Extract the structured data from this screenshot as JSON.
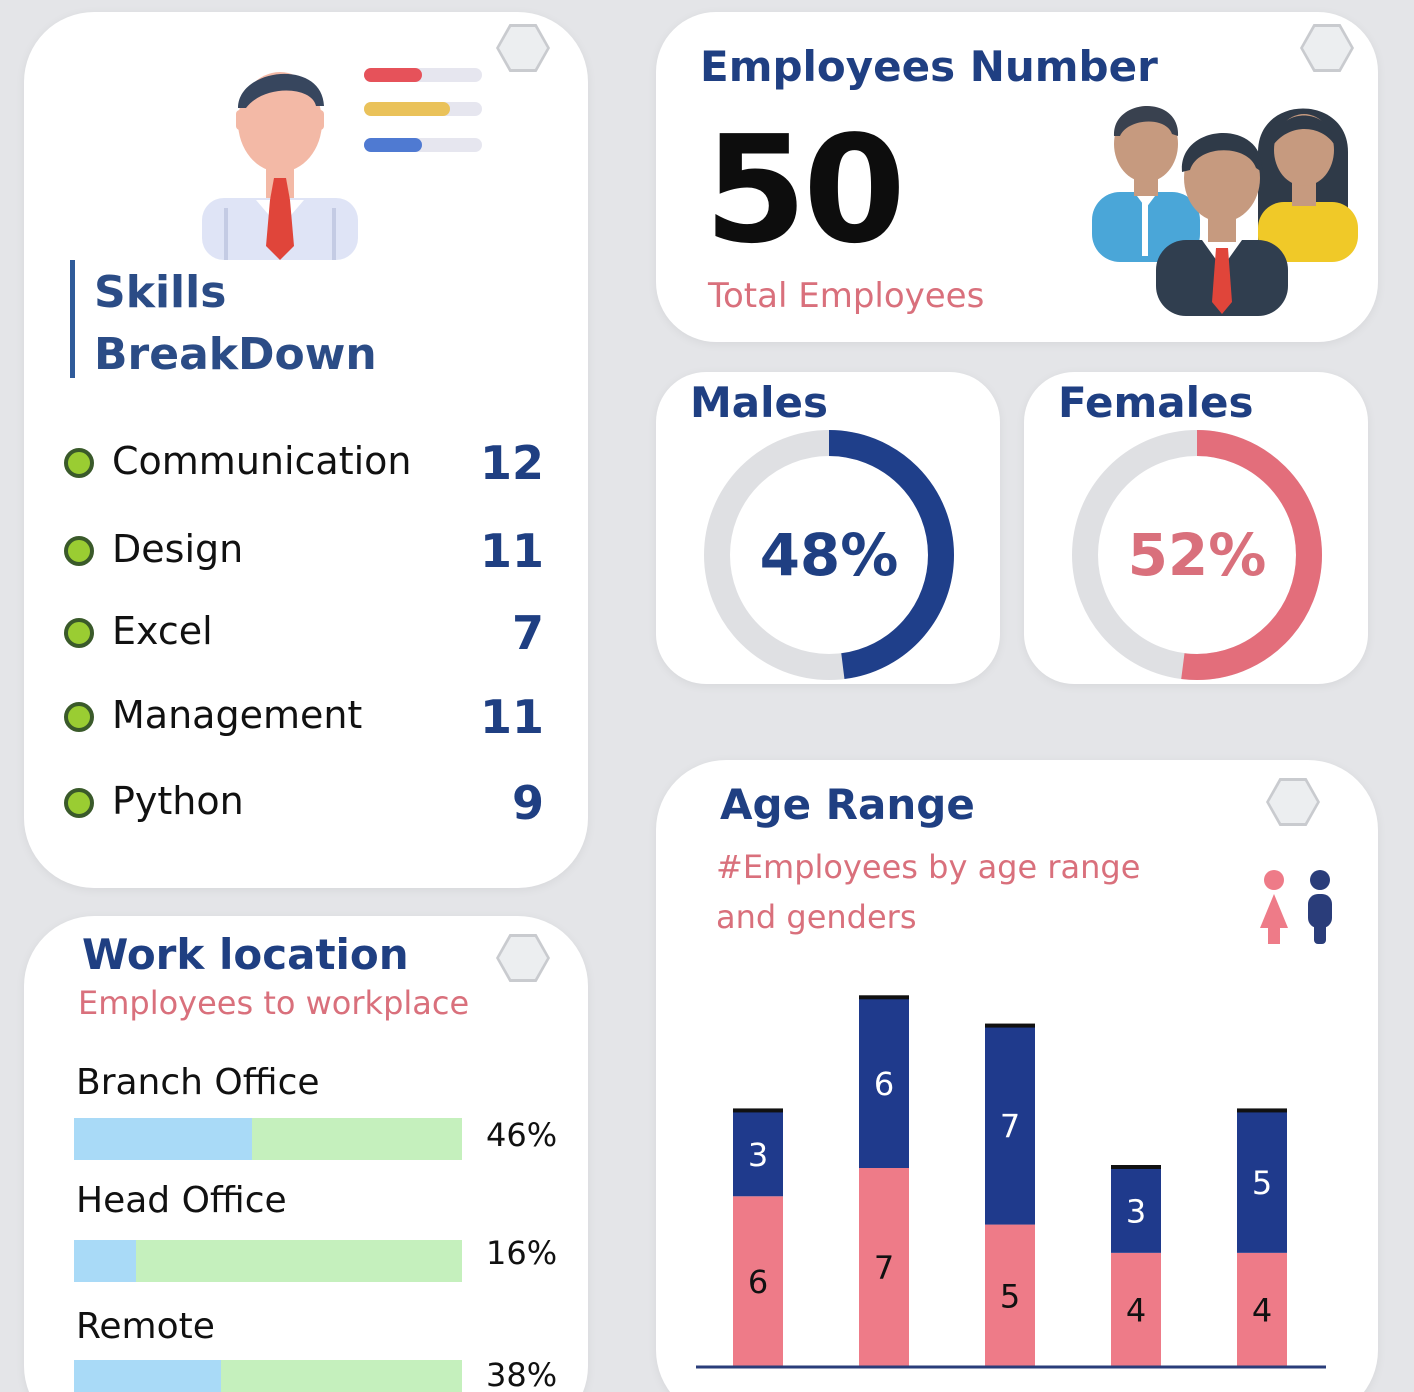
{
  "skills": {
    "title_line1": "Skills",
    "title_line2": "BreakDown",
    "items": [
      {
        "label": "Communication",
        "value": "12"
      },
      {
        "label": "Design",
        "value": "11"
      },
      {
        "label": "Excel",
        "value": "7"
      },
      {
        "label": "Management",
        "value": "11"
      },
      {
        "label": "Python",
        "value": "9"
      }
    ]
  },
  "employees": {
    "title": "Employees Number",
    "total": "50",
    "subtitle": "Total Employees"
  },
  "gender": {
    "males": {
      "title": "Males",
      "percent_label": "48%",
      "fraction": 0.48,
      "color": "#1f3f8a"
    },
    "females": {
      "title": "Females",
      "percent_label": "52%",
      "fraction": 0.52,
      "color": "#e36e7b"
    }
  },
  "work_location": {
    "title": "Work location",
    "subtitle": "Employees to workplace",
    "items": [
      {
        "label": "Branch Office",
        "percent_label": "46%",
        "fraction": 0.46
      },
      {
        "label": "Head Office",
        "percent_label": "16%",
        "fraction": 0.16
      },
      {
        "label": "Remote",
        "percent_label": "38%",
        "fraction": 0.38
      }
    ]
  },
  "age_range": {
    "title": "Age Range",
    "subtitle": "#Employees by age range and genders",
    "icons": [
      "female-icon",
      "male-icon"
    ]
  },
  "chart_data": {
    "type": "bar",
    "stacked": true,
    "categories": [
      "",
      "",
      "",
      "",
      ""
    ],
    "series": [
      {
        "values": [
          6,
          7,
          5,
          4,
          4
        ],
        "color": "#ee7b88"
      },
      {
        "values": [
          3,
          6,
          7,
          3,
          5
        ],
        "color": "#1f3a8c"
      }
    ],
    "ylim": [
      0,
      14
    ],
    "grid": false,
    "legend": "none"
  },
  "colors": {
    "navy": "#1f3f82",
    "pink": "#d9707c",
    "bar_blue": "#a9daf7",
    "bar_green": "#c5f0bd",
    "dot_green": "#9acd32"
  }
}
